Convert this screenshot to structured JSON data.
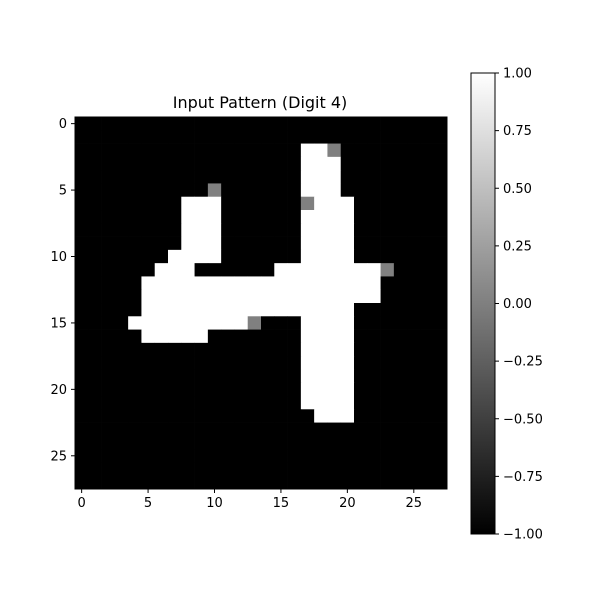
{
  "chart_data": {
    "type": "heatmap",
    "title": "Input Pattern (Digit 4)",
    "colormap": "gray",
    "vmin": -1.0,
    "vmax": 1.0,
    "rows": 28,
    "cols": 28,
    "x_ticks": [
      0,
      5,
      10,
      15,
      20,
      25
    ],
    "x_tick_labels": [
      "0",
      "5",
      "10",
      "15",
      "20",
      "25"
    ],
    "y_ticks": [
      0,
      5,
      10,
      15,
      20,
      25
    ],
    "y_tick_labels": [
      "0",
      "5",
      "10",
      "15",
      "20",
      "25"
    ],
    "colorbar_ticks": [
      1.0,
      0.75,
      0.5,
      0.25,
      0.0,
      -0.25,
      -0.5,
      -0.75,
      -1.0
    ],
    "colorbar_tick_labels": [
      "1.00",
      "0.75",
      "0.50",
      "0.25",
      "0.00",
      "−0.25",
      "−0.50",
      "−0.75",
      "−1.00"
    ],
    "white_cells": [
      [
        2,
        17
      ],
      [
        2,
        18
      ],
      [
        3,
        17
      ],
      [
        3,
        18
      ],
      [
        3,
        19
      ],
      [
        4,
        17
      ],
      [
        4,
        18
      ],
      [
        4,
        19
      ],
      [
        5,
        17
      ],
      [
        5,
        18
      ],
      [
        5,
        19
      ],
      [
        6,
        8
      ],
      [
        6,
        9
      ],
      [
        6,
        10
      ],
      [
        6,
        18
      ],
      [
        6,
        19
      ],
      [
        6,
        20
      ],
      [
        7,
        8
      ],
      [
        7,
        9
      ],
      [
        7,
        10
      ],
      [
        7,
        17
      ],
      [
        7,
        18
      ],
      [
        7,
        19
      ],
      [
        7,
        20
      ],
      [
        8,
        8
      ],
      [
        8,
        9
      ],
      [
        8,
        10
      ],
      [
        8,
        17
      ],
      [
        8,
        18
      ],
      [
        8,
        19
      ],
      [
        8,
        20
      ],
      [
        9,
        8
      ],
      [
        9,
        9
      ],
      [
        9,
        10
      ],
      [
        9,
        17
      ],
      [
        9,
        18
      ],
      [
        9,
        19
      ],
      [
        9,
        20
      ],
      [
        10,
        7
      ],
      [
        10,
        8
      ],
      [
        10,
        9
      ],
      [
        10,
        10
      ],
      [
        10,
        17
      ],
      [
        10,
        18
      ],
      [
        10,
        19
      ],
      [
        10,
        20
      ],
      [
        11,
        6
      ],
      [
        11,
        7
      ],
      [
        11,
        8
      ],
      [
        11,
        15
      ],
      [
        11,
        16
      ],
      [
        11,
        17
      ],
      [
        11,
        18
      ],
      [
        11,
        19
      ],
      [
        11,
        20
      ],
      [
        11,
        21
      ],
      [
        11,
        22
      ],
      [
        12,
        5
      ],
      [
        12,
        6
      ],
      [
        12,
        7
      ],
      [
        12,
        8
      ],
      [
        12,
        9
      ],
      [
        12,
        10
      ],
      [
        12,
        11
      ],
      [
        12,
        12
      ],
      [
        12,
        13
      ],
      [
        12,
        14
      ],
      [
        12,
        15
      ],
      [
        12,
        16
      ],
      [
        12,
        17
      ],
      [
        12,
        18
      ],
      [
        12,
        19
      ],
      [
        12,
        20
      ],
      [
        12,
        21
      ],
      [
        12,
        22
      ],
      [
        13,
        5
      ],
      [
        13,
        6
      ],
      [
        13,
        7
      ],
      [
        13,
        8
      ],
      [
        13,
        9
      ],
      [
        13,
        10
      ],
      [
        13,
        11
      ],
      [
        13,
        12
      ],
      [
        13,
        13
      ],
      [
        13,
        14
      ],
      [
        13,
        15
      ],
      [
        13,
        16
      ],
      [
        13,
        17
      ],
      [
        13,
        18
      ],
      [
        13,
        19
      ],
      [
        13,
        20
      ],
      [
        13,
        21
      ],
      [
        13,
        22
      ],
      [
        14,
        5
      ],
      [
        14,
        6
      ],
      [
        14,
        7
      ],
      [
        14,
        8
      ],
      [
        14,
        9
      ],
      [
        14,
        10
      ],
      [
        14,
        11
      ],
      [
        14,
        12
      ],
      [
        14,
        13
      ],
      [
        14,
        14
      ],
      [
        14,
        15
      ],
      [
        14,
        16
      ],
      [
        14,
        17
      ],
      [
        14,
        18
      ],
      [
        14,
        19
      ],
      [
        14,
        20
      ],
      [
        15,
        4
      ],
      [
        15,
        5
      ],
      [
        15,
        6
      ],
      [
        15,
        7
      ],
      [
        15,
        8
      ],
      [
        15,
        9
      ],
      [
        15,
        10
      ],
      [
        15,
        11
      ],
      [
        15,
        12
      ],
      [
        15,
        17
      ],
      [
        15,
        18
      ],
      [
        15,
        19
      ],
      [
        15,
        20
      ],
      [
        16,
        5
      ],
      [
        16,
        6
      ],
      [
        16,
        7
      ],
      [
        16,
        8
      ],
      [
        16,
        9
      ],
      [
        16,
        17
      ],
      [
        16,
        18
      ],
      [
        16,
        19
      ],
      [
        16,
        20
      ],
      [
        17,
        17
      ],
      [
        17,
        18
      ],
      [
        17,
        19
      ],
      [
        17,
        20
      ],
      [
        18,
        17
      ],
      [
        18,
        18
      ],
      [
        18,
        19
      ],
      [
        18,
        20
      ],
      [
        19,
        17
      ],
      [
        19,
        18
      ],
      [
        19,
        19
      ],
      [
        19,
        20
      ],
      [
        20,
        17
      ],
      [
        20,
        18
      ],
      [
        20,
        19
      ],
      [
        20,
        20
      ],
      [
        21,
        17
      ],
      [
        21,
        18
      ],
      [
        21,
        19
      ],
      [
        21,
        20
      ],
      [
        22,
        18
      ],
      [
        22,
        19
      ],
      [
        22,
        20
      ]
    ],
    "gray_cells": [
      [
        2,
        19
      ],
      [
        5,
        10
      ],
      [
        6,
        17
      ],
      [
        11,
        23
      ],
      [
        15,
        13
      ]
    ],
    "gray_value": 0.0
  }
}
